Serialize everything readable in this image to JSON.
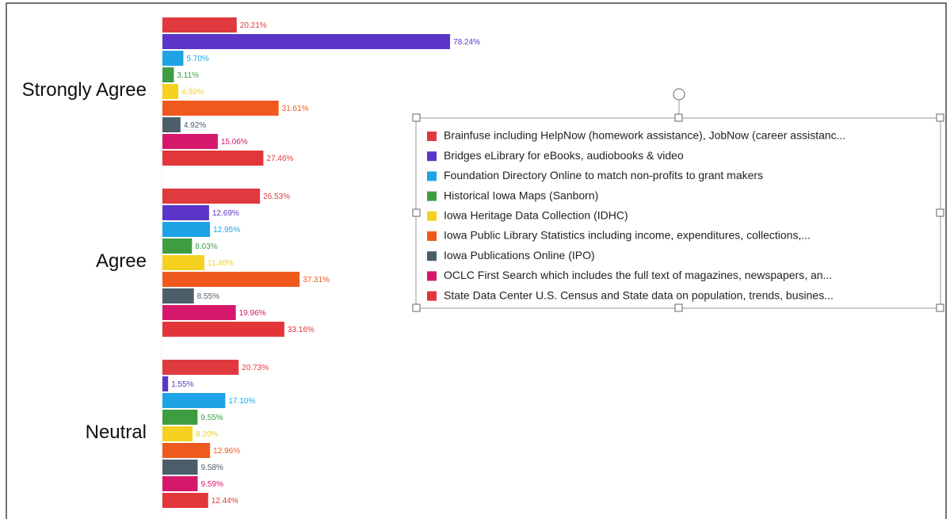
{
  "chart_data": {
    "type": "bar",
    "orientation": "horizontal",
    "categories": [
      "Strongly Agree",
      "Agree",
      "Neutral"
    ],
    "series": [
      {
        "name": "Brainfuse including HelpNow (homework assistance), JobNow (career assistanc...",
        "color": "#e0393e",
        "values": [
          20.21,
          26.53,
          20.73
        ],
        "value_labels": [
          "20.21%",
          "26.53%",
          "20.73%"
        ]
      },
      {
        "name": "Bridges eLibrary for eBooks, audiobooks & video",
        "color": "#5b35c8",
        "values": [
          78.24,
          12.69,
          1.55
        ],
        "value_labels": [
          "78.24%",
          "12.69%",
          "1.55%"
        ]
      },
      {
        "name": "Foundation Directory Online to match non-profits to grant makers",
        "color": "#1ea3e6",
        "values": [
          5.7,
          12.95,
          17.1
        ],
        "value_labels": [
          "5.70%",
          "12.95%",
          "17.10%"
        ]
      },
      {
        "name": "Historical Iowa Maps (Sanborn)",
        "color": "#3e9c43",
        "values": [
          3.11,
          8.03,
          9.55
        ],
        "value_labels": [
          "3.11%",
          "8.03%",
          "9.55%"
        ]
      },
      {
        "name": "Iowa Heritage Data Collection (IDHC)",
        "color": "#f4d21f",
        "values": [
          4.3,
          11.4,
          8.2
        ],
        "value_labels": [
          "4.30%",
          "11.40%",
          "8.20%"
        ]
      },
      {
        "name": "Iowa Public Library Statistics including income, expenditures, collections,...",
        "color": "#f0591d",
        "values": [
          31.61,
          37.31,
          12.96
        ],
        "value_labels": [
          "31.61%",
          "37.31%",
          "12.96%"
        ]
      },
      {
        "name": "Iowa Publications Online (IPO)",
        "color": "#4b5e6a",
        "values": [
          4.92,
          8.55,
          9.58
        ],
        "value_labels": [
          "4.92%",
          "8.55%",
          "9.58%"
        ]
      },
      {
        "name": "OCLC First Search which includes the full text of magazines, newspapers, an...",
        "color": "#d5186c",
        "values": [
          15.06,
          19.96,
          9.59
        ],
        "value_labels": [
          "15.06%",
          "19.96%",
          "9.59%"
        ]
      },
      {
        "name": "State Data Center U.S. Census and State data on population, trends, busines...",
        "color": "#e2363a",
        "values": [
          27.46,
          33.16,
          12.44
        ],
        "value_labels": [
          "27.46%",
          "33.16%",
          "12.44%"
        ]
      }
    ]
  }
}
